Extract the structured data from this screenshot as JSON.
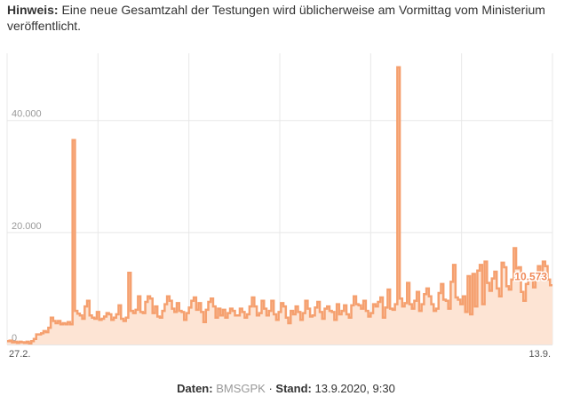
{
  "hint": {
    "label": "Hinweis:",
    "text": "Eine neue Gesamtzahl der Testungen wird üblicherweise am Vormittag vom Ministerium veröffentlicht."
  },
  "footer": {
    "data_label": "Daten:",
    "source": "BMSGPK",
    "separator": "·",
    "stand_label": "Stand:",
    "stand_value": "13.9.2020, 9:30"
  },
  "colors": {
    "line": "#f5a06f",
    "fill": "#fde4d4",
    "grid": "#e8e8e8",
    "last_label": "#f08a5a"
  },
  "chart_data": {
    "type": "area",
    "title": "",
    "xlabel": "",
    "ylabel": "",
    "ylim": [
      0,
      52000
    ],
    "y_ticks": [
      0,
      20000,
      40000
    ],
    "y_tick_labels": [
      "0",
      "20.000",
      "40.000"
    ],
    "x_tick_labels": [
      "27.2.",
      "13.9."
    ],
    "grid": true,
    "last_value_label": "10.573",
    "series": [
      {
        "values": [
          600,
          700,
          400,
          500,
          300,
          500,
          400,
          300,
          500,
          200,
          600,
          1000,
          1800,
          1800,
          2000,
          2400,
          2200,
          3000,
          4800,
          4200,
          3800,
          4200,
          3600,
          3800,
          3600,
          4000,
          3600,
          36500,
          6000,
          5500,
          5200,
          4600,
          6800,
          7800,
          5200,
          4800,
          4600,
          5800,
          4400,
          4600,
          5000,
          5600,
          5400,
          4400,
          4800,
          5400,
          7000,
          4600,
          4200,
          4800,
          12800,
          6000,
          5600,
          6200,
          8600,
          5800,
          5600,
          7600,
          8600,
          8200,
          5600,
          6800,
          5000,
          4800,
          6000,
          7200,
          8600,
          7800,
          6400,
          5800,
          7400,
          6000,
          5800,
          4400,
          5600,
          6600,
          7800,
          8400,
          6200,
          7400,
          5800,
          4000,
          6200,
          7600,
          8200,
          6800,
          4800,
          6400,
          5200,
          6200,
          4800,
          5600,
          6400,
          6000,
          5200,
          5200,
          6400,
          5800,
          4800,
          5400,
          6800,
          8400,
          6800,
          5200,
          5600,
          7800,
          6400,
          5200,
          6000,
          7800,
          5400,
          4400,
          5800,
          7400,
          6800,
          4800,
          3800,
          6000,
          5400,
          6800,
          5800,
          4400,
          5600,
          7800,
          6400,
          5000,
          5200,
          6600,
          7600,
          5800,
          4600,
          6400,
          6800,
          6000,
          5800,
          4400,
          7200,
          5400,
          6000,
          7000,
          5400,
          4800,
          7000,
          8600,
          7200,
          7000,
          6400,
          7800,
          6000,
          5000,
          5600,
          7200,
          6800,
          7600,
          8400,
          4800,
          6600,
          9800,
          6400,
          6200,
          7200,
          49500,
          8200,
          6800,
          7400,
          11000,
          7200,
          6400,
          7800,
          9400,
          6000,
          7200,
          9000,
          10000,
          8600,
          7200,
          6000,
          6400,
          9200,
          10800,
          8000,
          7800,
          6400,
          11200,
          14200,
          8400,
          8000,
          7200,
          8600,
          5800,
          12200,
          5400,
          12600,
          6800,
          13200,
          14200,
          7200,
          14800,
          11000,
          9600,
          11800,
          13000,
          10000,
          8600,
          14600,
          13800,
          10400,
          9800,
          11600,
          17200,
          13600,
          13800,
          9400,
          7800,
          10800,
          11600,
          12400,
          10200,
          11600,
          14000,
          11800,
          14800,
          14000,
          11600,
          10573
        ]
      }
    ]
  }
}
